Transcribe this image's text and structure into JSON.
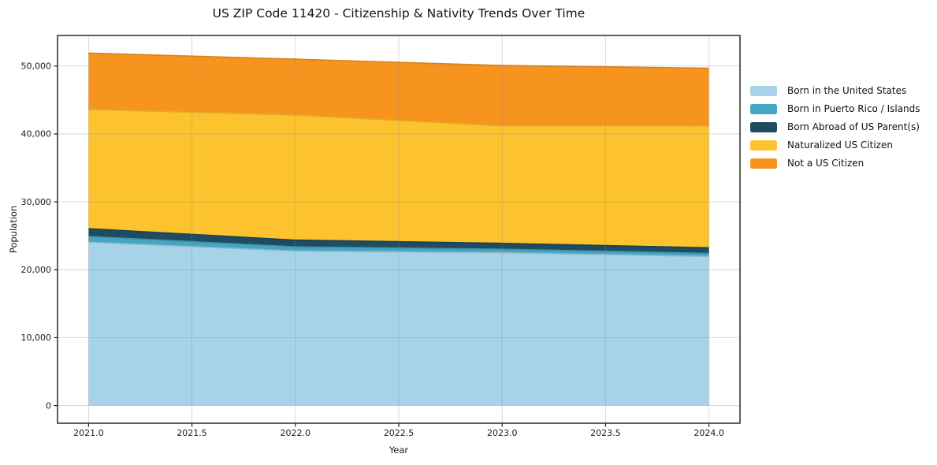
{
  "figure": {
    "title": "US ZIP Code 11420 - Citizenship & Nativity Trends Over Time"
  },
  "chart_data": {
    "type": "area",
    "stacked": true,
    "title": "US ZIP Code 11420 - Citizenship & Nativity Trends Over Time",
    "xlabel": "Year",
    "ylabel": "Population",
    "x": [
      2021,
      2022,
      2023,
      2024
    ],
    "series": [
      {
        "name": "Born in the United States",
        "color": "#a7d3e8",
        "values": [
          24050,
          22750,
          22500,
          21950
        ]
      },
      {
        "name": "Born in Puerto Rico / Islands",
        "color": "#45a6c4",
        "values": [
          850,
          620,
          530,
          460
        ]
      },
      {
        "name": "Born Abroad of US Parent(s)",
        "color": "#1f4c60",
        "values": [
          1150,
          1000,
          860,
          820
        ]
      },
      {
        "name": "Naturalized US Citizen",
        "color": "#fdc32f",
        "values": [
          17550,
          18420,
          17300,
          17950
        ]
      },
      {
        "name": "Not a US Citizen",
        "color": "#f7941e",
        "values": [
          8300,
          8220,
          8890,
          8500
        ]
      }
    ],
    "totals": [
      51900,
      51010,
      50080,
      49680
    ],
    "xlim": [
      2020.85,
      2024.15
    ],
    "ylim": [
      -2600,
      54500
    ],
    "xtick_values": [
      2021.0,
      2021.5,
      2022.0,
      2022.5,
      2023.0,
      2023.5,
      2024.0
    ],
    "xtick_labels": [
      "2021.0",
      "2021.5",
      "2022.0",
      "2022.5",
      "2023.0",
      "2023.5",
      "2024.0"
    ],
    "ytick_values": [
      0,
      10000,
      20000,
      30000,
      40000,
      50000
    ],
    "ytick_labels": [
      "0",
      "10,000",
      "20,000",
      "30,000",
      "40,000",
      "50,000"
    ],
    "grid": true,
    "legend_position": "right",
    "background_color": "#ffffff",
    "spine_color": "#1a1a1a",
    "gridline_color_rgba": "rgba(140,140,140,0.32)"
  }
}
